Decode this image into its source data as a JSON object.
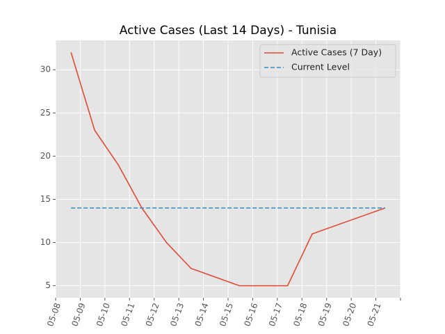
{
  "chart_data": {
    "type": "line",
    "title": "Active Cases (Last 14 Days) - Tunisia",
    "xlabel": "",
    "ylabel": "",
    "x_tick_labels": [
      "05-08",
      "05-09",
      "05-10",
      "05-11",
      "05-12",
      "05-13",
      "05-14",
      "05-15",
      "05-16",
      "05-17",
      "05-18",
      "05-19",
      "05-20",
      "05-21"
    ],
    "y_ticks": [
      5,
      10,
      15,
      20,
      25,
      30
    ],
    "ylim": [
      3.6,
      33.4
    ],
    "xlim": [
      "2020-05-08",
      "2020-05-22"
    ],
    "grid": true,
    "legend_position": "top-right",
    "series": [
      {
        "name": "Active Cases (7 Day)",
        "color": "#E24A33",
        "style": "solid",
        "points": [
          {
            "x": "2020-05-08 15:00",
            "y": 32
          },
          {
            "x": "2020-05-09 14:00",
            "y": 23
          },
          {
            "x": "2020-05-10 13:00",
            "y": 19
          },
          {
            "x": "2020-05-11 12:00",
            "y": 14
          },
          {
            "x": "2020-05-12 12:00",
            "y": 10
          },
          {
            "x": "2020-05-13 12:00",
            "y": 7
          },
          {
            "x": "2020-05-15 11:00",
            "y": 5
          },
          {
            "x": "2020-05-17 10:00",
            "y": 5
          },
          {
            "x": "2020-05-18 10:00",
            "y": 11
          },
          {
            "x": "2020-05-21 09:00",
            "y": 14
          }
        ]
      },
      {
        "name": "Current Level",
        "color": "#348ABD",
        "style": "dashed",
        "points": [
          {
            "x": "2020-05-08 15:00",
            "y": 14
          },
          {
            "x": "2020-05-21 09:00",
            "y": 14
          }
        ]
      }
    ]
  }
}
